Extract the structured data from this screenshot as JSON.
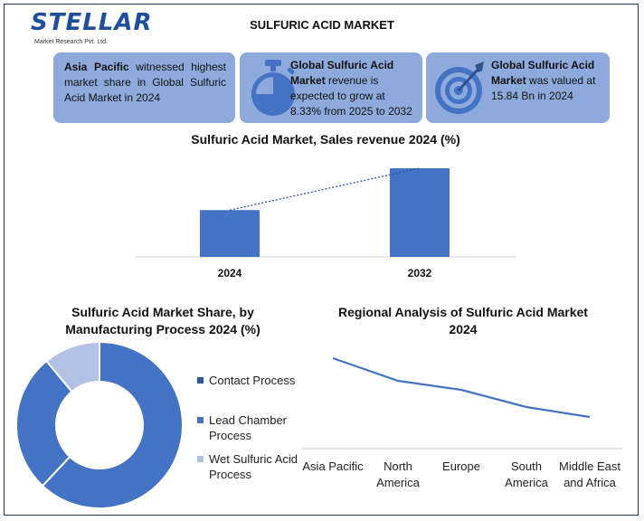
{
  "brand": {
    "name": "STELLAR",
    "subtitle": "Market Research Pvt. Ltd."
  },
  "title": "SULFURIC ACID MARKET",
  "cards": [
    {
      "bold": "Asia Pacific",
      "text": " witnessed highest market share in Global Sulfuric Acid Market in 2024"
    },
    {
      "bold": "Global Sulfuric Acid Market",
      "text": " revenue is expected to grow at 8.33% from 2025 to 2032",
      "icon": "stopwatch-icon"
    },
    {
      "bold": "Global Sulfuric Acid Market",
      "text": " was valued at 15.84 Bn in 2024",
      "icon": "target-icon"
    }
  ],
  "colors": {
    "card_bg": "#8ea9db",
    "bar": "#4472c4",
    "line": "#4472c4",
    "donut_main": "#4472c4",
    "donut_second": "#4472c4",
    "donut_third": "#b4c1e6"
  },
  "chart_data": [
    {
      "type": "bar",
      "title": "Sulfuric Acid Market, Sales revenue 2024 (%)",
      "categories": [
        "2024",
        "2032"
      ],
      "values": [
        15.84,
        30.0
      ],
      "trendline": "dotted"
    },
    {
      "type": "pie",
      "title": "Sulfuric Acid Market Share, by Manufacturing Process 2024 (%)",
      "labels": [
        "Contact Process",
        "Lead Chamber Process",
        "Wet Sulfuric Acid Process"
      ],
      "values": [
        62,
        27,
        11
      ],
      "donut": true,
      "legend_position": "right"
    },
    {
      "type": "line",
      "title": "Regional Analysis of Sulfuric Acid Market 2024",
      "categories": [
        "Asia Pacific",
        "North America",
        "Europe",
        "South America",
        "Middle East and Africa"
      ],
      "values": [
        100,
        75,
        65,
        46,
        35
      ],
      "ylim": [
        0,
        110
      ]
    }
  ]
}
